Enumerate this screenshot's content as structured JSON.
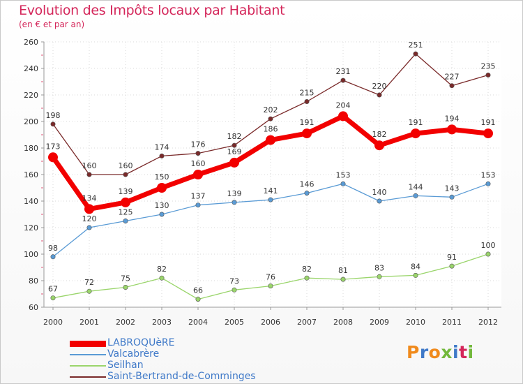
{
  "title": "Evolution des Impôts locaux par Habitant",
  "subtitle": "(en € et par an)",
  "logo": {
    "text": "Proxiti",
    "letter_colors": [
      "#f08a1c",
      "#3f79c8",
      "#f08a1c",
      "#72b83b",
      "#3f79c8",
      "#d4265a",
      "#72b83b"
    ]
  },
  "chart_data": {
    "type": "line",
    "x": [
      "2000",
      "2001",
      "2002",
      "2003",
      "2004",
      "2005",
      "2006",
      "2007",
      "2008",
      "2009",
      "2010",
      "2011",
      "2012"
    ],
    "ylim": [
      60,
      260
    ],
    "yticks": [
      "60",
      "80",
      "100",
      "120",
      "140",
      "160",
      "180",
      "200",
      "220",
      "240",
      "260"
    ],
    "grid": true,
    "legend_position": "bottom-left",
    "series": [
      {
        "name": "LABROQUèRE",
        "color": "#f20000",
        "emphasis": true,
        "values": [
          173,
          134,
          139,
          150,
          160,
          169,
          186,
          191,
          204,
          182,
          191,
          194,
          191
        ]
      },
      {
        "name": "Valcabrère",
        "color": "#5a9bd5",
        "emphasis": false,
        "values": [
          98,
          120,
          125,
          130,
          137,
          139,
          141,
          146,
          153,
          140,
          144,
          143,
          153
        ]
      },
      {
        "name": "Seilhan",
        "color": "#9ad56b",
        "emphasis": false,
        "values": [
          67,
          72,
          75,
          82,
          66,
          73,
          76,
          82,
          81,
          83,
          84,
          91,
          100
        ]
      },
      {
        "name": "Saint-Bertrand-de-Comminges",
        "color": "#7a2a2a",
        "emphasis": false,
        "values": [
          198,
          160,
          160,
          174,
          176,
          182,
          202,
          215,
          231,
          220,
          251,
          227,
          235
        ]
      }
    ]
  }
}
